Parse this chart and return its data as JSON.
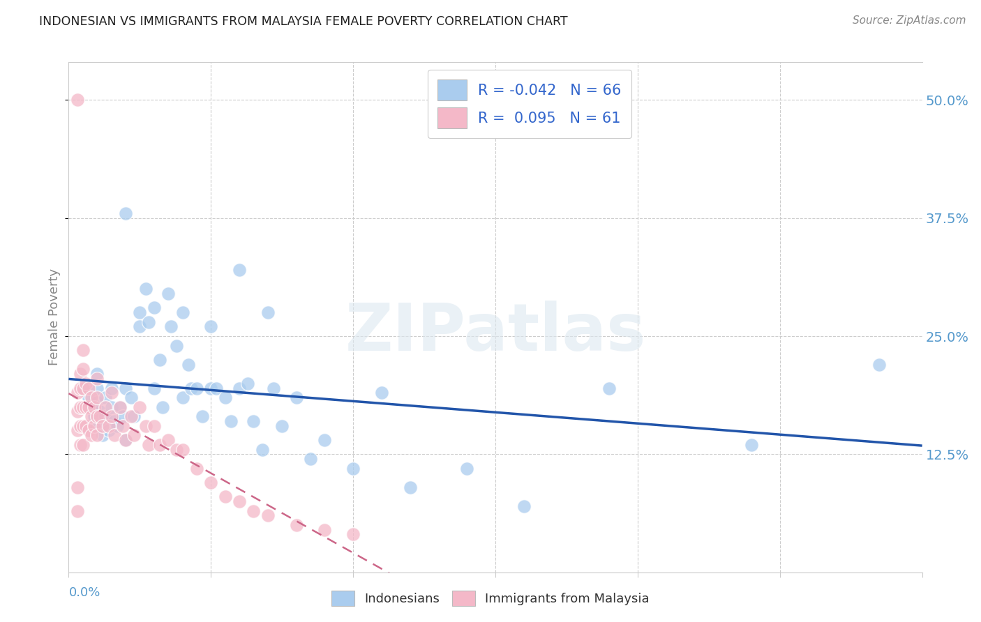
{
  "title": "INDONESIAN VS IMMIGRANTS FROM MALAYSIA FEMALE POVERTY CORRELATION CHART",
  "source": "Source: ZipAtlas.com",
  "ylabel": "Female Poverty",
  "ytick_values": [
    0.125,
    0.25,
    0.375,
    0.5
  ],
  "ytick_labels": [
    "12.5%",
    "25.0%",
    "37.5%",
    "50.0%"
  ],
  "xlim": [
    0.0,
    0.3
  ],
  "ylim": [
    0.0,
    0.54
  ],
  "legend_blue_R": "-0.042",
  "legend_blue_N": "66",
  "legend_pink_R": "0.095",
  "legend_pink_N": "61",
  "blue_scatter_color": "#aaccee",
  "pink_scatter_color": "#f4b8c8",
  "blue_line_color": "#2255aa",
  "pink_line_color": "#cc6688",
  "watermark": "ZIPatlas",
  "indonesians_x": [
    0.005,
    0.007,
    0.008,
    0.009,
    0.01,
    0.01,
    0.01,
    0.01,
    0.011,
    0.012,
    0.012,
    0.013,
    0.013,
    0.014,
    0.015,
    0.015,
    0.016,
    0.017,
    0.018,
    0.019,
    0.02,
    0.02,
    0.02,
    0.022,
    0.023,
    0.025,
    0.025,
    0.027,
    0.028,
    0.03,
    0.03,
    0.032,
    0.033,
    0.035,
    0.036,
    0.038,
    0.04,
    0.04,
    0.042,
    0.043,
    0.045,
    0.047,
    0.05,
    0.05,
    0.052,
    0.055,
    0.057,
    0.06,
    0.06,
    0.063,
    0.065,
    0.068,
    0.07,
    0.072,
    0.075,
    0.08,
    0.085,
    0.09,
    0.1,
    0.11,
    0.12,
    0.14,
    0.16,
    0.19,
    0.24,
    0.285
  ],
  "indonesians_y": [
    0.195,
    0.185,
    0.175,
    0.165,
    0.21,
    0.195,
    0.18,
    0.155,
    0.17,
    0.16,
    0.145,
    0.185,
    0.165,
    0.15,
    0.195,
    0.175,
    0.16,
    0.155,
    0.175,
    0.165,
    0.38,
    0.195,
    0.14,
    0.185,
    0.165,
    0.275,
    0.26,
    0.3,
    0.265,
    0.28,
    0.195,
    0.225,
    0.175,
    0.295,
    0.26,
    0.24,
    0.275,
    0.185,
    0.22,
    0.195,
    0.195,
    0.165,
    0.26,
    0.195,
    0.195,
    0.185,
    0.16,
    0.32,
    0.195,
    0.2,
    0.16,
    0.13,
    0.275,
    0.195,
    0.155,
    0.185,
    0.12,
    0.14,
    0.11,
    0.19,
    0.09,
    0.11,
    0.07,
    0.195,
    0.135,
    0.22
  ],
  "malaysia_x": [
    0.003,
    0.003,
    0.003,
    0.003,
    0.004,
    0.004,
    0.004,
    0.004,
    0.004,
    0.005,
    0.005,
    0.005,
    0.005,
    0.005,
    0.005,
    0.006,
    0.006,
    0.006,
    0.007,
    0.007,
    0.007,
    0.008,
    0.008,
    0.008,
    0.009,
    0.009,
    0.01,
    0.01,
    0.01,
    0.01,
    0.011,
    0.012,
    0.013,
    0.014,
    0.015,
    0.015,
    0.016,
    0.018,
    0.019,
    0.02,
    0.022,
    0.023,
    0.025,
    0.027,
    0.028,
    0.03,
    0.032,
    0.035,
    0.038,
    0.04,
    0.045,
    0.05,
    0.055,
    0.06,
    0.065,
    0.07,
    0.08,
    0.09,
    0.1,
    0.003,
    0.003
  ],
  "malaysia_y": [
    0.5,
    0.19,
    0.17,
    0.15,
    0.21,
    0.195,
    0.175,
    0.155,
    0.135,
    0.235,
    0.215,
    0.195,
    0.175,
    0.155,
    0.135,
    0.2,
    0.175,
    0.155,
    0.195,
    0.175,
    0.15,
    0.185,
    0.165,
    0.145,
    0.175,
    0.155,
    0.205,
    0.185,
    0.165,
    0.145,
    0.165,
    0.155,
    0.175,
    0.155,
    0.19,
    0.165,
    0.145,
    0.175,
    0.155,
    0.14,
    0.165,
    0.145,
    0.175,
    0.155,
    0.135,
    0.155,
    0.135,
    0.14,
    0.13,
    0.13,
    0.11,
    0.095,
    0.08,
    0.075,
    0.065,
    0.06,
    0.05,
    0.045,
    0.04,
    0.09,
    0.065
  ]
}
